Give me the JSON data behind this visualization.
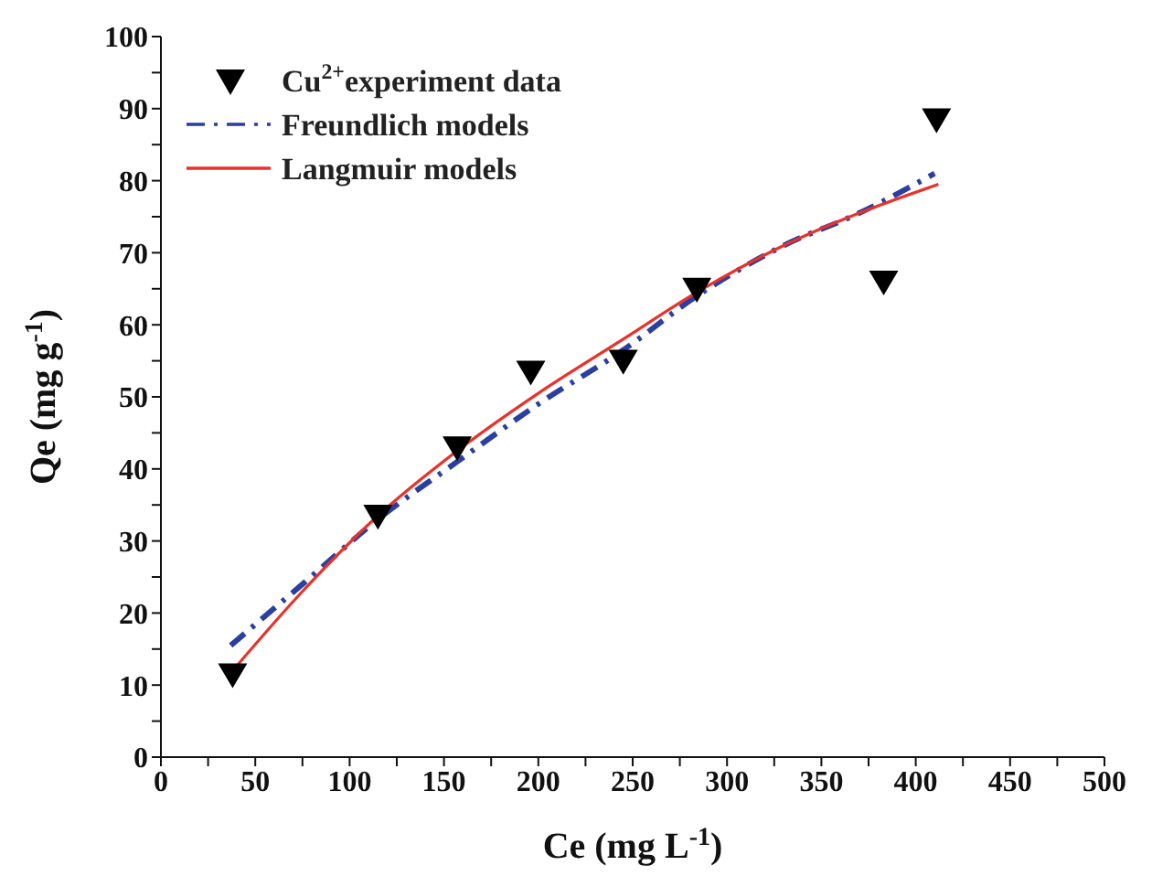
{
  "chart_data": {
    "type": "line",
    "xlabel": "Ce (mg L$^{-1}$)",
    "ylabel": "Qe (mg g$^{-1}$)",
    "xlim": [
      0,
      500
    ],
    "ylim": [
      0,
      100
    ],
    "xticks": [
      0,
      {
        "value": 25,
        "label": null
      },
      50,
      {
        "value": 75,
        "label": null
      },
      100,
      {
        "value": 125,
        "label": null
      },
      150,
      {
        "value": 175,
        "label": null
      },
      200,
      {
        "value": 225,
        "label": null
      },
      250,
      {
        "value": 275,
        "label": null
      },
      300,
      {
        "value": 325,
        "label": null
      },
      350,
      {
        "value": 375,
        "label": null
      },
      400,
      {
        "value": 425,
        "label": null
      },
      450,
      {
        "value": 475,
        "label": null
      },
      500
    ],
    "yticks": [
      0,
      {
        "value": 5,
        "label": null
      },
      10,
      {
        "value": 15,
        "label": null
      },
      20,
      {
        "value": 25,
        "label": null
      },
      30,
      {
        "value": 35,
        "label": null
      },
      40,
      {
        "value": 45,
        "label": null
      },
      50,
      {
        "value": 55,
        "label": null
      },
      60,
      {
        "value": 65,
        "label": null
      },
      70,
      {
        "value": 75,
        "label": null
      },
      80,
      {
        "value": 85,
        "label": null
      },
      90,
      {
        "value": 95,
        "label": null
      },
      100
    ],
    "legend": "top left",
    "series": [
      {
        "name": "Cu$^{2+}$experiment data",
        "type": "scatter",
        "marker": "triangle",
        "color": "#000000",
        "x": [
          38,
          115,
          157,
          196,
          245,
          284,
          383,
          411
        ],
        "values": [
          11.5,
          33.5,
          43,
          53.5,
          55,
          65,
          66,
          88.5
        ]
      },
      {
        "name": "Freundlich models",
        "line_style": "dashed",
        "color": "#2b3fa0",
        "x": [
          37,
          75,
          115,
          157,
          200,
          245,
          284,
          330,
          370,
          410
        ],
        "values": [
          15.5,
          24,
          33,
          41,
          49,
          56.5,
          64,
          71,
          75.5,
          81
        ]
      },
      {
        "name": "Langmuir models",
        "line_style": "solid",
        "color": "#e8322a",
        "x": [
          38,
          75,
          115,
          157,
          200,
          245,
          284,
          330,
          370,
          412
        ],
        "values": [
          12,
          23,
          33.5,
          42.5,
          50.5,
          58,
          64.5,
          71,
          75.5,
          79.5
        ]
      }
    ]
  }
}
